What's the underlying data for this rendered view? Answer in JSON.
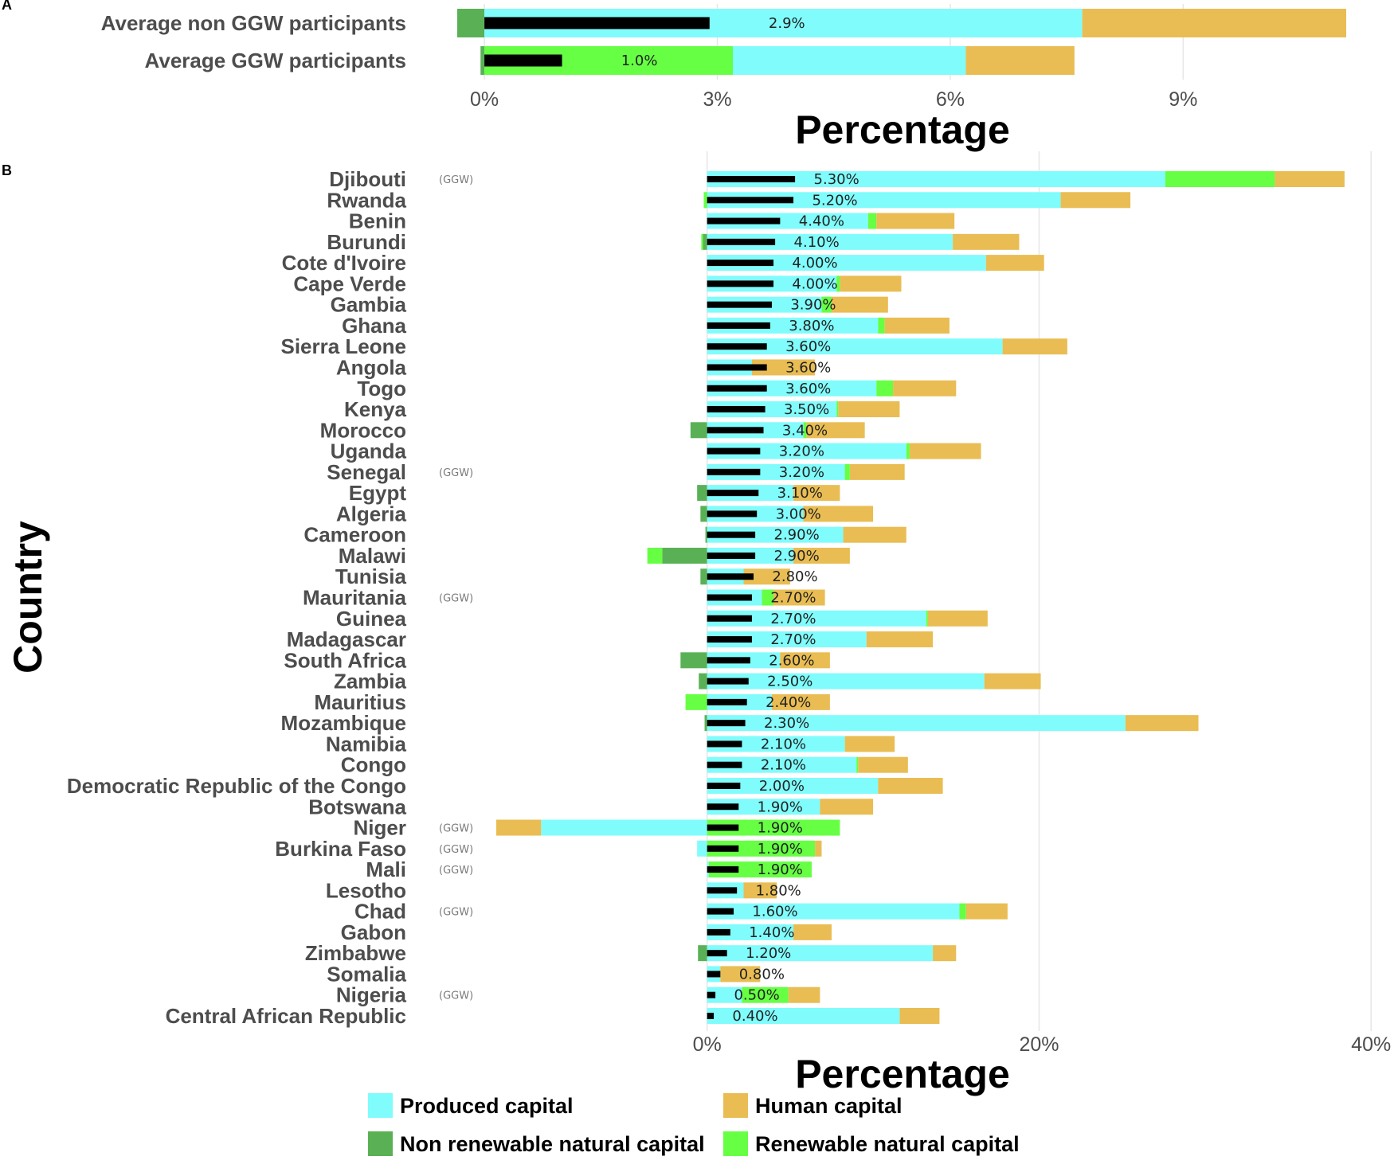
{
  "chart_data": [
    {
      "panel": "A",
      "type": "bar",
      "orientation": "horizontal",
      "stacked": true,
      "xlabel": "Percentage",
      "xticks": [
        "0%",
        "3%",
        "6%",
        "9%"
      ],
      "xtick_values": [
        0,
        3,
        6,
        9
      ],
      "xlim": [
        -0.35,
        11.1
      ],
      "categories": [
        "Average non GGW participants",
        "Average GGW participants"
      ],
      "series": [
        {
          "name": "Non renewable natural capital",
          "key": "nonren",
          "values": [
            -0.35,
            -0.05
          ]
        },
        {
          "name": "Renewable natural capital",
          "key": "ren",
          "values": [
            0,
            3.2
          ]
        },
        {
          "name": "Produced capital",
          "key": "produced",
          "values": [
            7.7,
            3.0
          ]
        },
        {
          "name": "Human capital",
          "key": "human",
          "values": [
            3.4,
            1.4
          ]
        }
      ],
      "black_bar_values": [
        2.9,
        1.0
      ],
      "labels": [
        "2.9%",
        "1.0%"
      ]
    },
    {
      "panel": "B",
      "type": "bar",
      "orientation": "horizontal",
      "stacked": true,
      "xlabel": "Percentage",
      "ylabel": "Country",
      "xticks": [
        "0%",
        "20%",
        "40%"
      ],
      "xtick_values": [
        0,
        20,
        40
      ],
      "xlim": [
        -12.7,
        38.5
      ],
      "ggw_tag": "(GGW)",
      "categories": [
        "Djibouti",
        "Rwanda",
        "Benin",
        "Burundi",
        "Cote d'Ivoire",
        "Cape Verde",
        "Gambia",
        "Ghana",
        "Sierra Leone",
        "Angola",
        "Togo",
        "Kenya",
        "Morocco",
        "Uganda",
        "Senegal",
        "Egypt",
        "Algeria",
        "Cameroon",
        "Malawi",
        "Tunisia",
        "Mauritania",
        "Guinea",
        "Madagascar",
        "South Africa",
        "Zambia",
        "Mauritius",
        "Mozambique",
        "Namibia",
        "Congo",
        "Democratic Republic of the Congo",
        "Botswana",
        "Niger",
        "Burkina Faso",
        "Mali",
        "Lesotho",
        "Chad",
        "Gabon",
        "Zimbabwe",
        "Somalia",
        "Nigeria",
        "Central African Republic"
      ],
      "ggw": [
        true,
        false,
        false,
        false,
        false,
        false,
        false,
        false,
        false,
        false,
        false,
        false,
        false,
        false,
        true,
        false,
        false,
        false,
        false,
        false,
        true,
        false,
        false,
        false,
        false,
        false,
        false,
        false,
        false,
        false,
        false,
        true,
        true,
        true,
        false,
        true,
        false,
        false,
        false,
        true,
        false
      ],
      "series": [
        {
          "name": "Non renewable natural capital",
          "key": "nonren",
          "values": [
            0,
            0,
            0,
            -0.25,
            0,
            0,
            0,
            0,
            0,
            0,
            0,
            0,
            -1.0,
            0,
            0,
            -0.6,
            -0.4,
            -0.1,
            -2.7,
            -0.4,
            0,
            0,
            0,
            -1.6,
            -0.5,
            0,
            -0.15,
            0,
            0,
            0,
            0,
            0,
            0,
            0,
            0,
            0,
            0,
            -0.55,
            0,
            0,
            0
          ]
        },
        {
          "name": "Produced capital",
          "key": "produced",
          "values": [
            27.6,
            21.3,
            9.7,
            14.8,
            16.8,
            7.8,
            6.9,
            10.3,
            17.8,
            2.7,
            10.2,
            7.8,
            5.8,
            12.0,
            8.3,
            5.2,
            5.8,
            8.2,
            5.2,
            2.2,
            3.3,
            13.2,
            9.6,
            4.4,
            16.7,
            3.9,
            25.2,
            8.3,
            9.0,
            10.3,
            6.8,
            -10.0,
            -0.6,
            0.1,
            2.2,
            15.2,
            5.2,
            13.6,
            0.8,
            2.1,
            11.6
          ]
        },
        {
          "name": "Renewable natural capital",
          "key": "ren",
          "values": [
            6.6,
            -0.2,
            0.5,
            -0.1,
            0,
            0.2,
            0.6,
            0.4,
            0,
            0,
            1.0,
            0.1,
            0.2,
            0.2,
            0.3,
            0,
            0,
            0,
            -0.9,
            0,
            0.7,
            0.1,
            0,
            0,
            0,
            -1.3,
            0,
            0,
            0.1,
            0,
            0,
            8.0,
            6.5,
            6.2,
            0,
            0.4,
            0,
            0,
            0,
            2.8,
            0
          ]
        },
        {
          "name": "Human capital",
          "key": "human",
          "values": [
            4.2,
            4.2,
            4.7,
            4.0,
            3.5,
            3.7,
            3.4,
            3.9,
            3.9,
            3.8,
            3.8,
            3.7,
            3.5,
            4.3,
            3.3,
            2.8,
            4.2,
            3.8,
            3.4,
            2.8,
            3.1,
            3.6,
            4.0,
            3.0,
            3.4,
            3.5,
            4.4,
            3.0,
            3.0,
            3.9,
            3.2,
            -2.7,
            0.4,
            0,
            2.0,
            2.5,
            2.3,
            1.4,
            2.4,
            1.9,
            2.4
          ]
        }
      ],
      "black_bar_values": [
        5.3,
        5.2,
        4.4,
        4.1,
        4.0,
        4.0,
        3.9,
        3.8,
        3.6,
        3.6,
        3.6,
        3.5,
        3.4,
        3.2,
        3.2,
        3.1,
        3.0,
        2.9,
        2.9,
        2.8,
        2.7,
        2.7,
        2.7,
        2.6,
        2.5,
        2.4,
        2.3,
        2.1,
        2.1,
        2.0,
        1.9,
        1.9,
        1.9,
        1.9,
        1.8,
        1.6,
        1.4,
        1.2,
        0.8,
        0.5,
        0.4
      ],
      "labels": [
        "5.30%",
        "5.20%",
        "4.40%",
        "4.10%",
        "4.00%",
        "4.00%",
        "3.90%",
        "3.80%",
        "3.60%",
        "3.60%",
        "3.60%",
        "3.50%",
        "3.40%",
        "3.20%",
        "3.20%",
        "3.10%",
        "3.00%",
        "2.90%",
        "2.90%",
        "2.80%",
        "2.70%",
        "2.70%",
        "2.70%",
        "2.60%",
        "2.50%",
        "2.40%",
        "2.30%",
        "2.10%",
        "2.10%",
        "2.00%",
        "1.90%",
        "1.90%",
        "1.90%",
        "1.90%",
        "1.80%",
        "1.60%",
        "1.40%",
        "1.20%",
        "0.80%",
        "0.50%",
        "0.40%"
      ]
    }
  ],
  "panels": {
    "a": "A",
    "b": "B"
  },
  "legend": {
    "placement": "bottom",
    "items": [
      {
        "label": "Produced capital",
        "key": "produced"
      },
      {
        "label": "Human capital",
        "key": "human"
      },
      {
        "label": "Non renewable natural capital",
        "key": "nonren"
      },
      {
        "label": "Renewable natural capital",
        "key": "ren"
      }
    ]
  },
  "colors": {
    "produced": "#80FCFC",
    "human": "#E9BD53",
    "nonren": "#5AB155",
    "ren": "#66FF44",
    "black_bar": "#000000"
  }
}
